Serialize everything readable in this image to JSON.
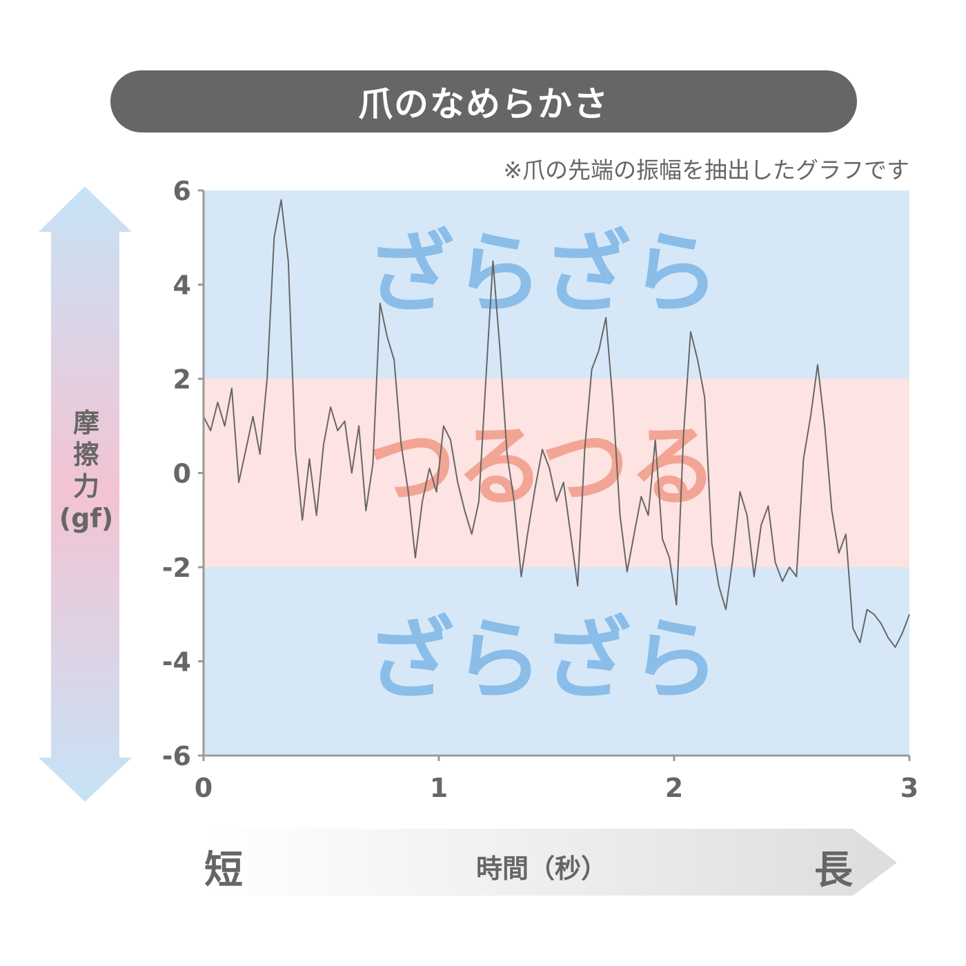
{
  "title": "爪のなめらかさ",
  "note": "※爪の先端の振幅を抽出したグラフです",
  "y_axis": {
    "label_chars": [
      "摩",
      "擦",
      "力",
      "(gf)"
    ]
  },
  "x_axis": {
    "short": "短",
    "long": "長",
    "label": "時間（秒）"
  },
  "zones": {
    "rough_label": "ざらざら",
    "smooth_label": "つるつる",
    "rough_color": "#d6e8f7",
    "smooth_color": "#fde3e1",
    "rough_text_color": "#8bbde9",
    "smooth_text_color": "#f2a595"
  },
  "chart_data": {
    "type": "line",
    "xlim": [
      0,
      3
    ],
    "ylim": [
      -6,
      6
    ],
    "x_ticks": [
      "0",
      "1",
      "2",
      "3"
    ],
    "y_ticks": [
      "6",
      "4",
      "2",
      "0",
      "-2",
      "-4",
      "-6"
    ],
    "smooth_band": [
      -2,
      2
    ],
    "line_color": "#666666",
    "series": [
      {
        "x": [
          0.0,
          0.03,
          0.06,
          0.09,
          0.12,
          0.15,
          0.18,
          0.21,
          0.24,
          0.27,
          0.3,
          0.33,
          0.36,
          0.39,
          0.42,
          0.45,
          0.48,
          0.51,
          0.54,
          0.57,
          0.6,
          0.63,
          0.66,
          0.69,
          0.72,
          0.75,
          0.78,
          0.81,
          0.84,
          0.87,
          0.9,
          0.93,
          0.96,
          0.99,
          1.02,
          1.05,
          1.08,
          1.11,
          1.14,
          1.17,
          1.2,
          1.23,
          1.26,
          1.29,
          1.32,
          1.35,
          1.38,
          1.41,
          1.44,
          1.47,
          1.5,
          1.53,
          1.56,
          1.59,
          1.62,
          1.65,
          1.68,
          1.71,
          1.74,
          1.77,
          1.8,
          1.83,
          1.86,
          1.89,
          1.92,
          1.95,
          1.98,
          2.01,
          2.04,
          2.07,
          2.1,
          2.13,
          2.16,
          2.19,
          2.22,
          2.25,
          2.28,
          2.31,
          2.34,
          2.37,
          2.4,
          2.43,
          2.46,
          2.49,
          2.52,
          2.55,
          2.58,
          2.61,
          2.64,
          2.67,
          2.7,
          2.73,
          2.76,
          2.79,
          2.82,
          2.85,
          2.88,
          2.91,
          2.94,
          2.97,
          3.0
        ],
        "y": [
          1.2,
          0.9,
          1.5,
          1.0,
          1.8,
          -0.2,
          0.5,
          1.2,
          0.4,
          2.0,
          5.0,
          5.8,
          4.5,
          0.5,
          -1.0,
          0.3,
          -0.9,
          0.6,
          1.4,
          0.9,
          1.1,
          0.0,
          1.0,
          -0.8,
          0.2,
          3.6,
          2.9,
          2.4,
          0.6,
          -0.4,
          -1.8,
          -0.6,
          0.1,
          -0.4,
          1.0,
          0.7,
          -0.2,
          -0.8,
          -1.3,
          -0.6,
          2.0,
          4.5,
          2.6,
          0.4,
          -0.6,
          -2.2,
          -1.2,
          -0.3,
          0.5,
          0.1,
          -0.6,
          -0.2,
          -1.3,
          -2.4,
          0.5,
          2.2,
          2.6,
          3.3,
          1.5,
          -0.9,
          -2.1,
          -1.3,
          -0.5,
          -0.9,
          0.7,
          -1.4,
          -1.8,
          -2.8,
          0.8,
          3.0,
          2.4,
          1.6,
          -1.5,
          -2.4,
          -2.9,
          -1.8,
          -0.4,
          -0.9,
          -2.2,
          -1.1,
          -0.7,
          -1.9,
          -2.3,
          -2.0,
          -2.2,
          0.3,
          1.2,
          2.3,
          1.0,
          -0.8,
          -1.7,
          -1.3,
          -3.3,
          -3.6,
          -2.9,
          -3.0,
          -3.2,
          -3.5,
          -3.7,
          -3.4,
          -3.0
        ]
      }
    ]
  }
}
